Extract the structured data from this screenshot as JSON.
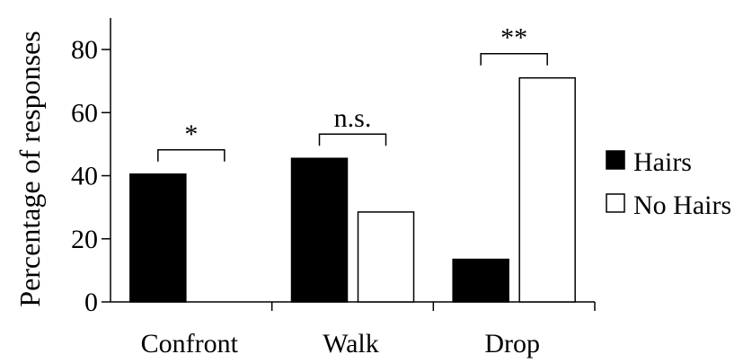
{
  "chart_data": {
    "type": "bar",
    "ylabel": "Percentage of responses",
    "categories": [
      "Confront",
      "Walk",
      "Drop"
    ],
    "ylim": [
      0,
      90
    ],
    "yticks": [
      0,
      20,
      40,
      60,
      80
    ],
    "grid": false,
    "legend_position": "right",
    "series": [
      {
        "name": "Hairs",
        "color": "#000000",
        "values": [
          40.5,
          45.5,
          13.5
        ]
      },
      {
        "name": "No Hairs",
        "color": "#ffffff",
        "values": [
          0,
          28.5,
          71
        ]
      }
    ],
    "significance": [
      {
        "category_index": 0,
        "label": "*"
      },
      {
        "category_index": 1,
        "label": "n.s."
      },
      {
        "category_index": 2,
        "label": "**"
      }
    ]
  }
}
